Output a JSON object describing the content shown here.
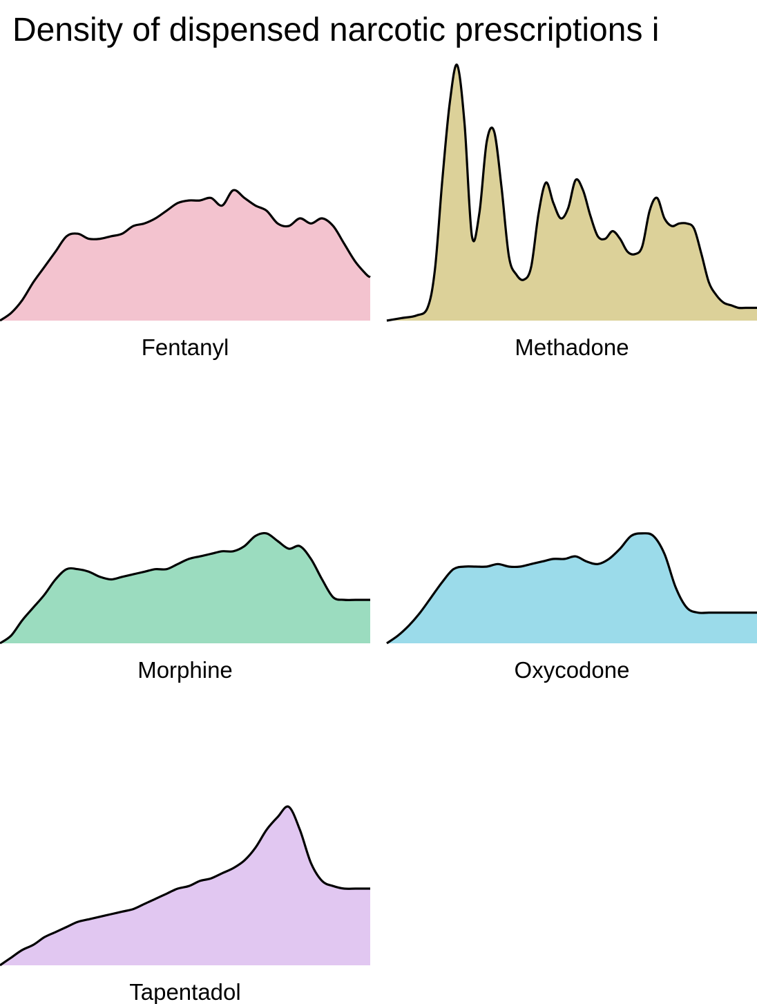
{
  "chart_data": {
    "type": "area",
    "title": "Density of dispensed narcotic prescriptions i",
    "xlabel": "",
    "ylabel": "",
    "grid": false,
    "legend": "none",
    "x_domain": [
      0,
      100
    ],
    "panels": [
      {
        "name": "Fentanyl",
        "color": "#f3c3cf",
        "x": [
          0,
          3,
          6,
          9,
          12,
          15,
          18,
          21,
          24,
          27,
          30,
          33,
          36,
          39,
          42,
          45,
          48,
          51,
          54,
          57,
          60,
          63,
          66,
          69,
          72,
          75,
          78,
          81,
          84,
          87,
          90,
          93,
          96,
          99,
          100
        ],
        "y": [
          0.0,
          0.03,
          0.08,
          0.15,
          0.21,
          0.27,
          0.33,
          0.34,
          0.32,
          0.32,
          0.33,
          0.34,
          0.37,
          0.38,
          0.4,
          0.43,
          0.46,
          0.47,
          0.47,
          0.48,
          0.45,
          0.51,
          0.48,
          0.45,
          0.43,
          0.38,
          0.37,
          0.4,
          0.38,
          0.4,
          0.37,
          0.3,
          0.23,
          0.18,
          0.17
        ]
      },
      {
        "name": "Methadone",
        "color": "#dcd199",
        "x": [
          0,
          4,
          8,
          11,
          13,
          15,
          17,
          19,
          21,
          23,
          25,
          27,
          29,
          31,
          33,
          35,
          37,
          39,
          41,
          43,
          45,
          47,
          49,
          51,
          53,
          55,
          57,
          59,
          61,
          63,
          65,
          67,
          69,
          71,
          73,
          75,
          77,
          79,
          81,
          83,
          85,
          87,
          89,
          91,
          93,
          95,
          97,
          99,
          100
        ],
        "y": [
          0.0,
          0.01,
          0.02,
          0.05,
          0.2,
          0.55,
          0.85,
          1.0,
          0.77,
          0.33,
          0.42,
          0.7,
          0.74,
          0.52,
          0.25,
          0.18,
          0.16,
          0.21,
          0.42,
          0.54,
          0.46,
          0.4,
          0.44,
          0.55,
          0.51,
          0.41,
          0.33,
          0.32,
          0.35,
          0.32,
          0.27,
          0.26,
          0.29,
          0.43,
          0.48,
          0.4,
          0.37,
          0.38,
          0.38,
          0.36,
          0.26,
          0.15,
          0.1,
          0.07,
          0.06,
          0.05,
          0.05,
          0.05,
          0.05
        ]
      },
      {
        "name": "Morphine",
        "color": "#9bdcbf",
        "x": [
          0,
          3,
          6,
          9,
          12,
          15,
          18,
          21,
          24,
          27,
          30,
          33,
          36,
          39,
          42,
          45,
          48,
          51,
          54,
          57,
          60,
          63,
          66,
          69,
          72,
          75,
          78,
          81,
          84,
          87,
          90,
          93,
          96,
          99,
          100
        ],
        "y": [
          0.0,
          0.03,
          0.09,
          0.14,
          0.19,
          0.25,
          0.29,
          0.29,
          0.28,
          0.26,
          0.25,
          0.26,
          0.27,
          0.28,
          0.29,
          0.29,
          0.31,
          0.33,
          0.34,
          0.35,
          0.36,
          0.36,
          0.38,
          0.42,
          0.43,
          0.4,
          0.37,
          0.38,
          0.33,
          0.25,
          0.18,
          0.17,
          0.17,
          0.17,
          0.17
        ]
      },
      {
        "name": "Oxycodone",
        "color": "#9bdbea",
        "x": [
          0,
          3,
          6,
          9,
          12,
          15,
          18,
          21,
          24,
          27,
          30,
          33,
          36,
          39,
          42,
          45,
          48,
          51,
          54,
          57,
          60,
          63,
          66,
          69,
          72,
          75,
          78,
          81,
          84,
          87,
          90,
          93,
          96,
          99,
          100
        ],
        "y": [
          0.0,
          0.03,
          0.07,
          0.12,
          0.18,
          0.24,
          0.29,
          0.3,
          0.3,
          0.3,
          0.31,
          0.3,
          0.3,
          0.31,
          0.32,
          0.33,
          0.33,
          0.34,
          0.32,
          0.31,
          0.33,
          0.37,
          0.42,
          0.43,
          0.42,
          0.35,
          0.22,
          0.14,
          0.12,
          0.12,
          0.12,
          0.12,
          0.12,
          0.12,
          0.12
        ]
      },
      {
        "name": "Tapentadol",
        "color": "#e1c7f1",
        "x": [
          0,
          3,
          6,
          9,
          12,
          15,
          18,
          21,
          24,
          27,
          30,
          33,
          36,
          39,
          42,
          45,
          48,
          51,
          54,
          57,
          60,
          63,
          66,
          69,
          72,
          75,
          78,
          81,
          84,
          87,
          90,
          93,
          96,
          99,
          100
        ],
        "y": [
          0.0,
          0.03,
          0.06,
          0.08,
          0.11,
          0.13,
          0.15,
          0.17,
          0.18,
          0.19,
          0.2,
          0.21,
          0.22,
          0.24,
          0.26,
          0.28,
          0.3,
          0.31,
          0.33,
          0.34,
          0.36,
          0.38,
          0.41,
          0.46,
          0.53,
          0.58,
          0.62,
          0.53,
          0.4,
          0.33,
          0.31,
          0.3,
          0.3,
          0.3,
          0.3
        ]
      }
    ]
  }
}
